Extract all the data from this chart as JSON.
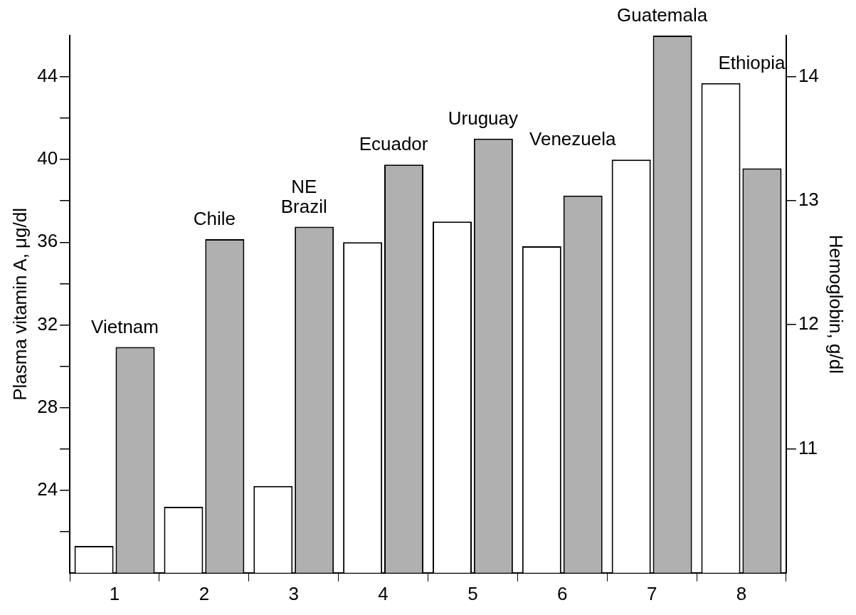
{
  "chart_data": {
    "type": "bar",
    "ylabel": "Plasma vitamin A, μg/dl",
    "y2label": "Hemoglobin, g/dl",
    "categories": [
      "1",
      "2",
      "3",
      "4",
      "5",
      "6",
      "7",
      "8"
    ],
    "series": [
      {
        "color": "#ffffff",
        "values": [
          21.3,
          23.2,
          24.2,
          36,
          37,
          35.8,
          40,
          43.7
        ]
      },
      {
        "color": "#b0b0b0",
        "axis": "y2",
        "values": [
          11.82,
          12.69,
          12.79,
          13.29,
          13.5,
          13.04,
          14.33,
          13.26
        ]
      }
    ],
    "ylim": [
      20,
      46
    ],
    "yticks": [
      {
        "value": 22,
        "label": null
      },
      24,
      {
        "value": 26,
        "label": null
      },
      28,
      {
        "value": 30,
        "label": null
      },
      32,
      {
        "value": 34,
        "label": null
      },
      36,
      {
        "value": 38,
        "label": null
      },
      40,
      {
        "value": 42,
        "label": null
      },
      44
    ],
    "y2lim": [
      10,
      14.33
    ],
    "y2ticks": [
      11,
      12,
      13,
      14
    ],
    "grid": false,
    "legend": false,
    "annotations": [
      "Vietnam",
      "Chile",
      "NE Brazil",
      "Ecuador",
      "Uruguay",
      "Venezuela",
      "Guatemala",
      "Ethiopia"
    ]
  }
}
